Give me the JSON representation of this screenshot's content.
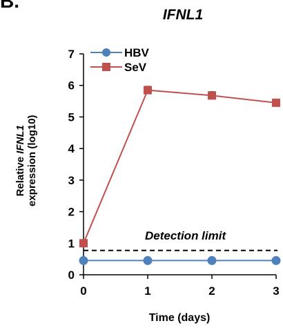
{
  "panel_letter": "B.",
  "chart_data": {
    "type": "line",
    "title": "IFNL1",
    "xlabel": "Time (days)",
    "ylabel_prefix": "Relative ",
    "ylabel_gene": "IFNL1",
    "ylabel_line2": "expression (log10)",
    "x": [
      0,
      1,
      2,
      3
    ],
    "xlim": [
      0,
      3
    ],
    "ylim": [
      0,
      7
    ],
    "yticks": [
      0,
      1,
      2,
      3,
      4,
      5,
      6,
      7
    ],
    "grid": false,
    "legend_position": "top-left",
    "series": [
      {
        "name": "HBV",
        "values": [
          0.45,
          0.45,
          0.45,
          0.45
        ],
        "color": "#4f81bd",
        "marker": "circle"
      },
      {
        "name": "SeV",
        "values": [
          1.0,
          5.85,
          5.68,
          5.45
        ],
        "color": "#c0504d",
        "marker": "square",
        "errors": [
          0.0,
          0.12,
          0.12,
          0.08
        ]
      }
    ],
    "reference_line": {
      "label": "Detection limit",
      "y": 0.77,
      "style": "dashed"
    }
  }
}
